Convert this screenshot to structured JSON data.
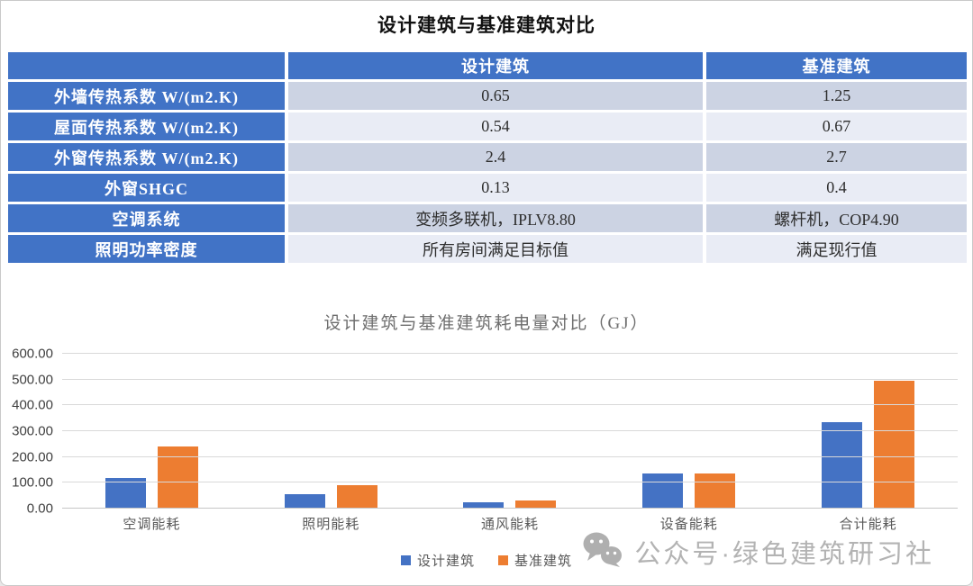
{
  "page": {
    "title": "设计建筑与基准建筑对比"
  },
  "table": {
    "col_headers": [
      "",
      "设计建筑",
      "基准建筑"
    ],
    "rows": [
      {
        "label": "外墙传热系数 W/(m2.K)",
        "design": "0.65",
        "baseline": "1.25"
      },
      {
        "label": "屋面传热系数 W/(m2.K)",
        "design": "0.54",
        "baseline": "0.67"
      },
      {
        "label": "外窗传热系数 W/(m2.K)",
        "design": "2.4",
        "baseline": "2.7"
      },
      {
        "label": "外窗SHGC",
        "design": "0.13",
        "baseline": "0.4"
      },
      {
        "label": "空调系统",
        "design": "变频多联机，IPLV8.80",
        "baseline": "螺杆机，COP4.90"
      },
      {
        "label": "照明功率密度",
        "design": "所有房间满足目标值",
        "baseline": "满足现行值"
      }
    ]
  },
  "chart_data": {
    "type": "bar",
    "title": "设计建筑与基准建筑耗电量对比（GJ）",
    "categories": [
      "空调能耗",
      "照明能耗",
      "通风能耗",
      "设备能耗",
      "合计能耗"
    ],
    "series": [
      {
        "name": "设计建筑",
        "color": "#4472C4",
        "values": [
          120,
          55,
          25,
          135,
          335
        ]
      },
      {
        "name": "基准建筑",
        "color": "#ED7D31",
        "values": [
          240,
          90,
          30,
          135,
          495
        ]
      }
    ],
    "ylim": [
      0,
      600
    ],
    "ytick_step": 100,
    "ytick_decimals": 2,
    "grid": true,
    "legend_position": "bottom"
  },
  "watermark": {
    "icon": "wechat-icon",
    "text": "公众号·绿色建筑研习社"
  },
  "colors": {
    "table_header_bg": "#4173C6",
    "band_dark": "#CCD3E3",
    "band_light": "#E9ECF5",
    "gridline": "#D9D9D9",
    "axis_line": "#C6C6C6",
    "chart_title_text": "#6E6E6E",
    "axis_text": "#3F3F3F",
    "category_text": "#595959",
    "legend_text": "#595959",
    "watermark_text": "#B3B3B3",
    "watermark_icon": "#AFAFAF"
  }
}
